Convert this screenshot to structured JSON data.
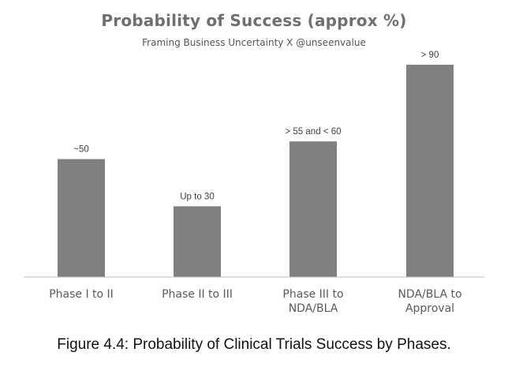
{
  "chart_data": {
    "type": "bar",
    "title": "Probability of Success (approx %)",
    "subtitle": "Framing Business Uncertainty X @unseenvalue",
    "categories": [
      [
        "Phase I to II"
      ],
      [
        "Phase II to III"
      ],
      [
        "Phase III to",
        "NDA/BLA"
      ],
      [
        "NDA/BLA to",
        "Approval"
      ]
    ],
    "values": [
      50,
      30,
      57.5,
      90
    ],
    "data_labels": [
      "~50",
      "Up to 30",
      "> 55 and < 60",
      "> 90"
    ],
    "xlabel": "",
    "ylabel": "",
    "ylim": [
      0,
      90
    ],
    "grid": false,
    "legend": "none",
    "colors": {
      "bar": "#808080",
      "axis": "#bfbfbf",
      "tick_label": "#5a5a5a",
      "data_label": "#404040"
    }
  },
  "caption": "Figure 4.4: Probability of Clinical Trials Success by Phases."
}
